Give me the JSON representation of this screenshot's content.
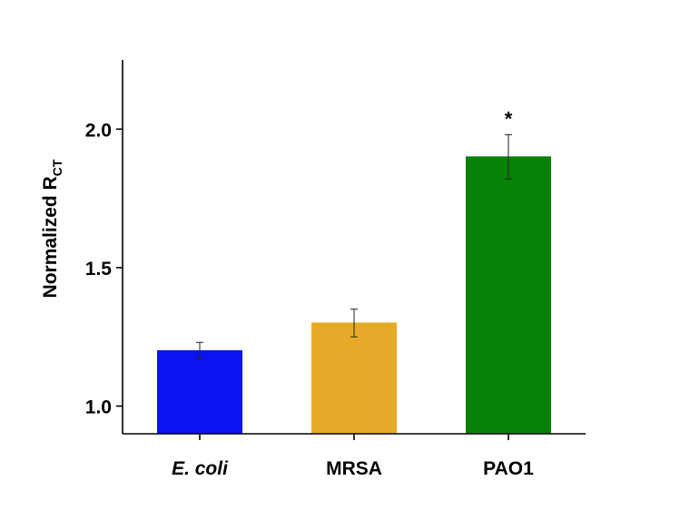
{
  "chart_data": {
    "type": "bar",
    "categories": [
      "E. coli",
      "MRSA",
      "PAO1"
    ],
    "category_italic": [
      true,
      false,
      false
    ],
    "values": [
      1.2,
      1.3,
      1.9
    ],
    "errors": [
      0.03,
      0.05,
      0.08
    ],
    "colors": [
      "#0a14f0",
      "#e6aa28",
      "#078207"
    ],
    "annotations": [
      "",
      "",
      "*"
    ],
    "ylabel": "Normalized R",
    "ylabel_subscript": "CT",
    "ylim": [
      0.9,
      2.25
    ],
    "yticks": [
      1.0,
      1.5,
      2.0
    ],
    "ytick_labels": [
      "1.0",
      "1.5",
      "2.0"
    ],
    "grid": false
  }
}
